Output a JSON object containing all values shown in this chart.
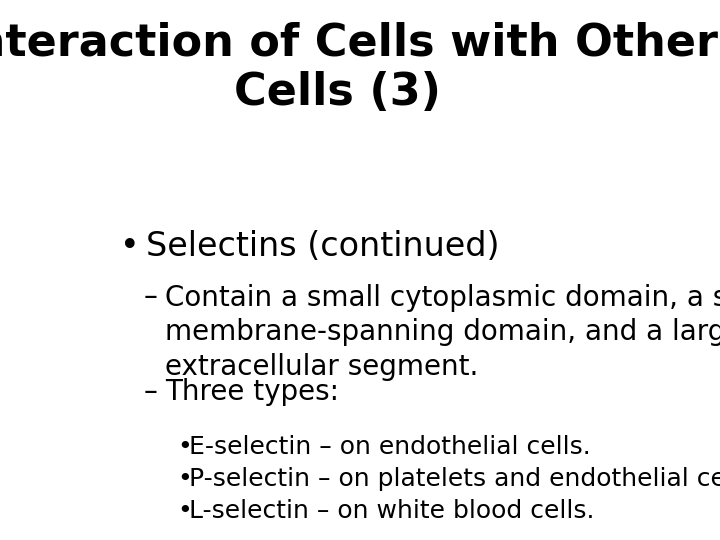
{
  "title_line1": "Interaction of Cells with Other",
  "title_line2": "Cells (3)",
  "background_color": "#ffffff",
  "text_color": "#000000",
  "title_fontsize": 32,
  "bullet1_fontsize": 24,
  "bullet2_fontsize": 20,
  "bullet3_fontsize": 18,
  "title_font": "DejaVu Sans",
  "body_font": "DejaVu Sans",
  "content": [
    {
      "level": 1,
      "bullet": "•",
      "text": "Selectins (continued)"
    },
    {
      "level": 2,
      "bullet": "–",
      "text": "Contain a small cytoplasmic domain, a single\nmembrane-spanning domain, and a large\nextracellular segment."
    },
    {
      "level": 2,
      "bullet": "–",
      "text": "Three types:"
    },
    {
      "level": 3,
      "bullet": "•",
      "text": "E-selectin – on endothelial cells."
    },
    {
      "level": 3,
      "bullet": "•",
      "text": "P-selectin – on platelets and endothelial cells."
    },
    {
      "level": 3,
      "bullet": "•",
      "text": "L-selectin – on white blood cells."
    }
  ]
}
